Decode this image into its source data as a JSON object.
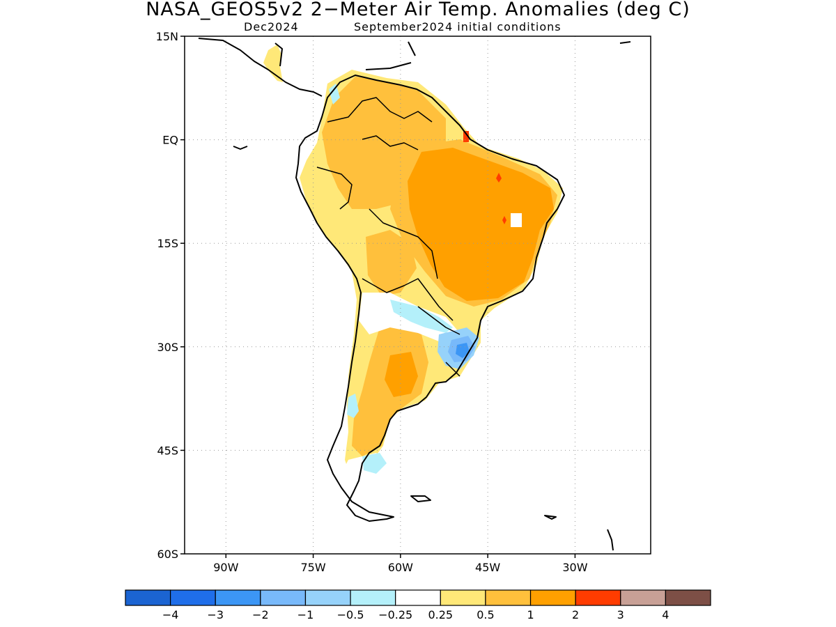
{
  "title": "NASA_GEOS5v2 2−Meter Air Temp. Anomalies (deg C)",
  "subtitle_left": "Dec2024",
  "subtitle_right": "September2024 initial conditions",
  "y_ticks": [
    {
      "label": "15N",
      "lat": 15
    },
    {
      "label": "EQ",
      "lat": 0
    },
    {
      "label": "15S",
      "lat": -15
    },
    {
      "label": "30S",
      "lat": -30
    },
    {
      "label": "45S",
      "lat": -45
    },
    {
      "label": "60S",
      "lat": -60
    }
  ],
  "x_ticks": [
    {
      "label": "90W",
      "lon": -90
    },
    {
      "label": "75W",
      "lon": -75
    },
    {
      "label": "60W",
      "lon": -60
    },
    {
      "label": "45W",
      "lon": -45
    },
    {
      "label": "30W",
      "lon": -30
    }
  ],
  "colorbar": {
    "colors": [
      "#1b64d2",
      "#1f6ee9",
      "#3c96f5",
      "#78b9fa",
      "#96d2fa",
      "#b4f0fa",
      "#ffffff",
      "#ffe878",
      "#ffc03c",
      "#ffa000",
      "#ff3c00",
      "#c8a096",
      "#7d4f46"
    ],
    "labels": [
      "−4",
      "−3",
      "−2",
      "−1",
      "−0.5",
      "−0.25",
      "0.25",
      "0.5",
      "1",
      "2",
      "3",
      "4"
    ]
  }
}
